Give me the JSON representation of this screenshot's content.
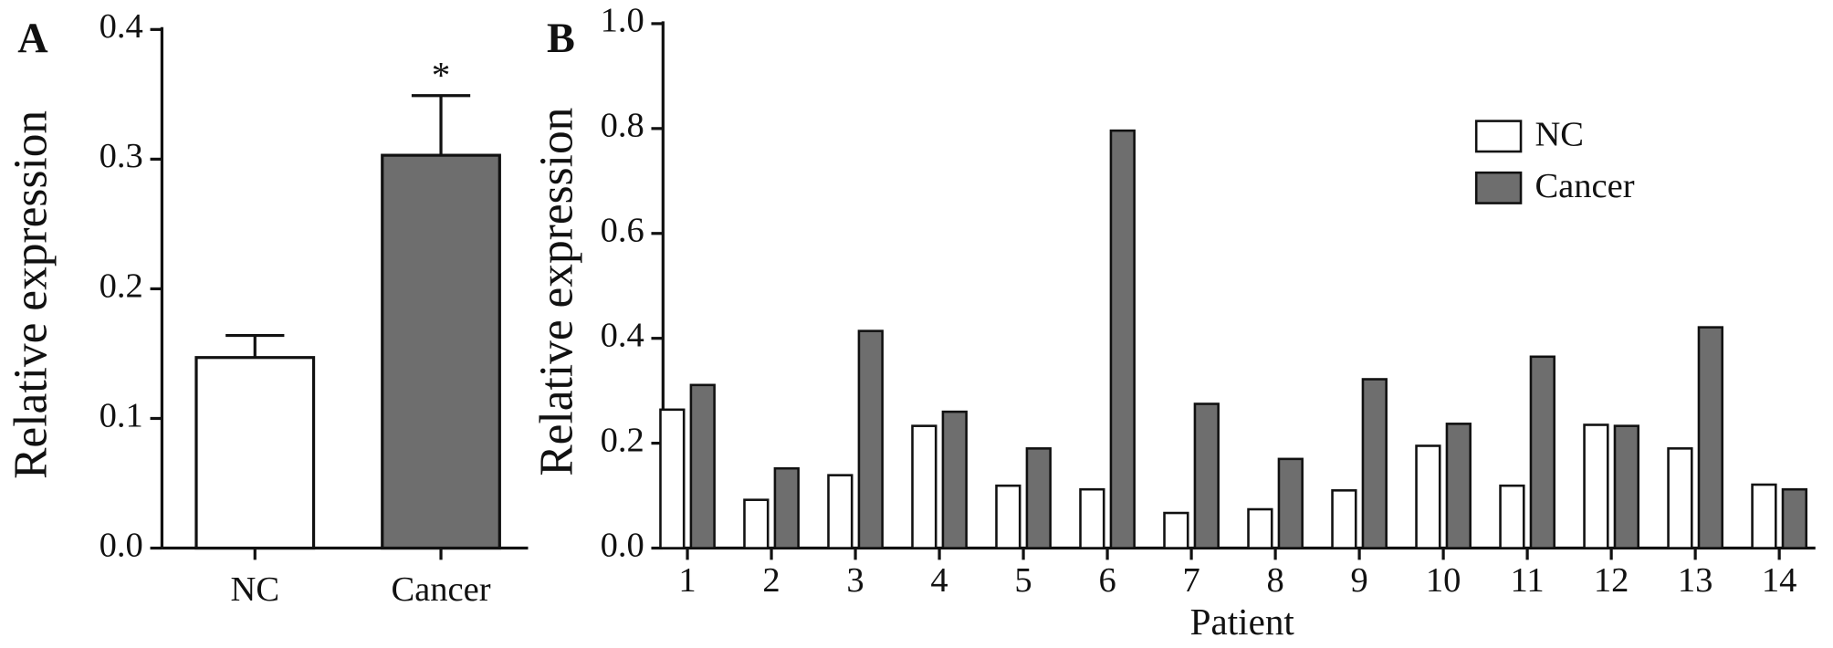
{
  "chart_data": [
    {
      "type": "bar",
      "panel_label": "A",
      "y_label": "Relative expression",
      "categories": [
        "NC",
        "Cancer"
      ],
      "values": [
        0.147,
        0.303
      ],
      "errors": [
        0.017,
        0.046
      ],
      "annotations": [
        null,
        "*"
      ],
      "colors": [
        "#ffffff",
        "#6e6e6e"
      ],
      "ylim": [
        0,
        0.4
      ],
      "yticks": [
        {
          "value": 0,
          "label": "0.0"
        },
        0.1,
        0.2,
        0.3,
        0.4
      ]
    },
    {
      "type": "grouped_bar",
      "panel_label": "B",
      "y_label": "Relative expression",
      "x_label": "Patient",
      "categories": [
        "1",
        "2",
        "3",
        "4",
        "5",
        "6",
        "7",
        "8",
        "9",
        "10",
        "11",
        "12",
        "13",
        "14"
      ],
      "series": [
        {
          "name": "NC",
          "color": "#ffffff",
          "values": [
            0.264,
            0.092,
            0.139,
            0.233,
            0.119,
            0.112,
            0.067,
            0.074,
            0.11,
            0.195,
            0.119,
            0.235,
            0.19,
            0.121
          ]
        },
        {
          "name": "Cancer",
          "color": "#6e6e6e",
          "values": [
            0.311,
            0.152,
            0.414,
            0.26,
            0.19,
            0.796,
            0.275,
            0.17,
            0.322,
            0.237,
            0.365,
            0.233,
            0.421,
            0.112
          ]
        }
      ],
      "legend": "upper right",
      "ylim": [
        0,
        1.0
      ],
      "yticks": [
        {
          "value": 0,
          "label": "0.0"
        },
        0.2,
        0.4,
        0.6,
        0.8,
        {
          "value": 1.0,
          "label": "1.0"
        }
      ]
    }
  ]
}
